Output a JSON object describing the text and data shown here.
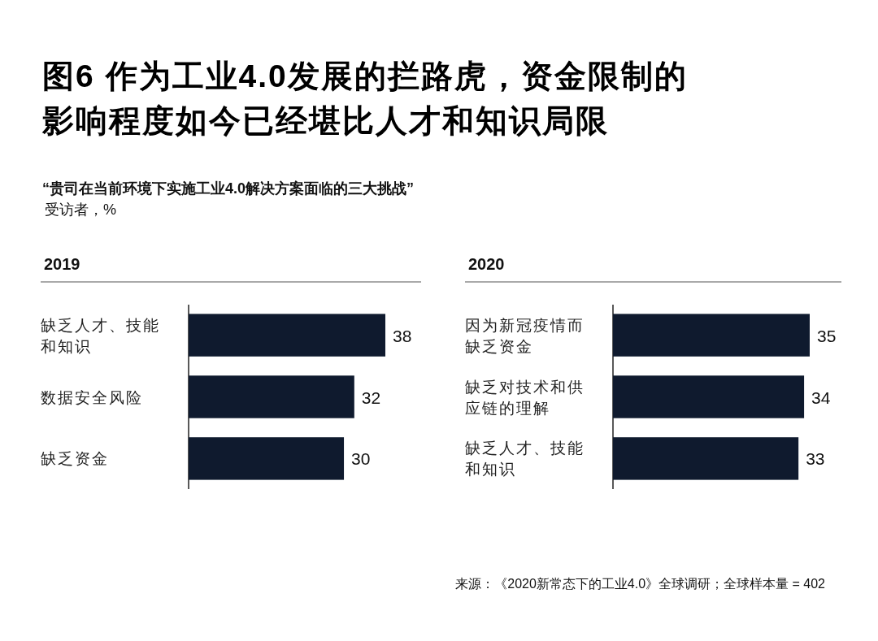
{
  "chart_data": [
    {
      "type": "bar",
      "orientation": "horizontal",
      "title": "2019",
      "categories": [
        "缺乏人才、技能和知识",
        "数据安全风险",
        "缺乏资金"
      ],
      "values": [
        38,
        32,
        30
      ],
      "color": "#0f1a2e",
      "data_labels": true,
      "annotations": [
        "图6 作为工业4.0发展的拦路虎，资金限制的影响程度如今已经堪比人才和知识局限",
        "“贵司在当前环境下实施工业4.0解决方案面临的三大挑战”",
        "受访者，%"
      ]
    },
    {
      "type": "bar",
      "orientation": "horizontal",
      "title": "2020",
      "categories": [
        "因为新冠疫情而缺乏资金",
        "缺乏对技术和供应链的理解",
        "缺乏人才、技能和知识"
      ],
      "values": [
        35,
        34,
        33
      ],
      "color": "#0f1a2e",
      "data_labels": true,
      "annotations": [
        "来源：《2020新常态下的工业4.0》全球调研；全球样本量 = 402"
      ]
    }
  ]
}
